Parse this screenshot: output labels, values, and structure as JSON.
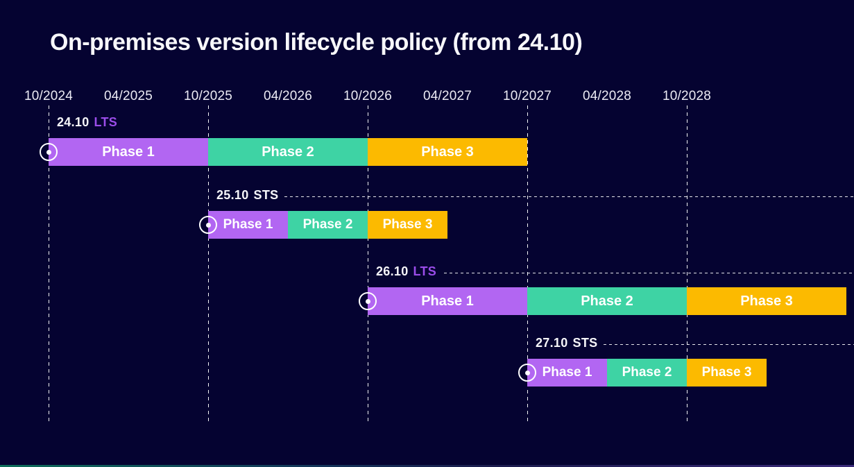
{
  "colors": {
    "background": "#050331",
    "phase1": "#b266f2",
    "phase2": "#3ed3a4",
    "phase3": "#fcba00",
    "lts_tag": "#9b4dea",
    "sts_tag": "#f6f6f9",
    "gridline": "#ffffff",
    "text": "#f7f7fa"
  },
  "chart_data": {
    "type": "bar",
    "variant": "gantt-timeline",
    "title": "On-premises version lifecycle policy (from 24.10)",
    "x_ticks": [
      "10/2024",
      "04/2025",
      "10/2025",
      "04/2026",
      "10/2026",
      "04/2027",
      "10/2027",
      "04/2028",
      "10/2028"
    ],
    "gridline_ticks": [
      "10/2024",
      "10/2025",
      "10/2026",
      "10/2027",
      "10/2028"
    ],
    "x_axis_format": "MM/YYYY",
    "grid": "dashed-vertical-october",
    "legend": "none",
    "rows": [
      {
        "version": "24.10",
        "channel": "LTS",
        "start": "10/2024",
        "has_guide_line": false,
        "phases": [
          {
            "label": "Phase 1",
            "start": "10/2024",
            "end": "10/2025",
            "color_key": "phase1"
          },
          {
            "label": "Phase 2",
            "start": "10/2025",
            "end": "10/2026",
            "color_key": "phase2"
          },
          {
            "label": "Phase 3",
            "start": "10/2026",
            "end": "10/2027",
            "color_key": "phase3"
          }
        ]
      },
      {
        "version": "25.10",
        "channel": "STS",
        "start": "10/2025",
        "has_guide_line": true,
        "phases": [
          {
            "label": "Phase 1",
            "start": "10/2025",
            "end": "04/2026",
            "color_key": "phase1"
          },
          {
            "label": "Phase 2",
            "start": "04/2026",
            "end": "10/2026",
            "color_key": "phase2"
          },
          {
            "label": "Phase 3",
            "start": "10/2026",
            "end": "04/2027",
            "color_key": "phase3"
          }
        ]
      },
      {
        "version": "26.10",
        "channel": "LTS",
        "start": "10/2026",
        "has_guide_line": true,
        "phases": [
          {
            "label": "Phase 1",
            "start": "10/2026",
            "end": "10/2027",
            "color_key": "phase1"
          },
          {
            "label": "Phase 2",
            "start": "10/2027",
            "end": "10/2028",
            "color_key": "phase2"
          },
          {
            "label": "Phase 3",
            "start": "10/2028",
            "end": "10/2029",
            "color_key": "phase3"
          }
        ]
      },
      {
        "version": "27.10",
        "channel": "STS",
        "start": "10/2027",
        "has_guide_line": true,
        "phases": [
          {
            "label": "Phase 1",
            "start": "10/2027",
            "end": "04/2028",
            "color_key": "phase1"
          },
          {
            "label": "Phase 2",
            "start": "04/2028",
            "end": "10/2028",
            "color_key": "phase2"
          },
          {
            "label": "Phase 3",
            "start": "10/2028",
            "end": "04/2029",
            "color_key": "phase3"
          }
        ]
      }
    ]
  }
}
